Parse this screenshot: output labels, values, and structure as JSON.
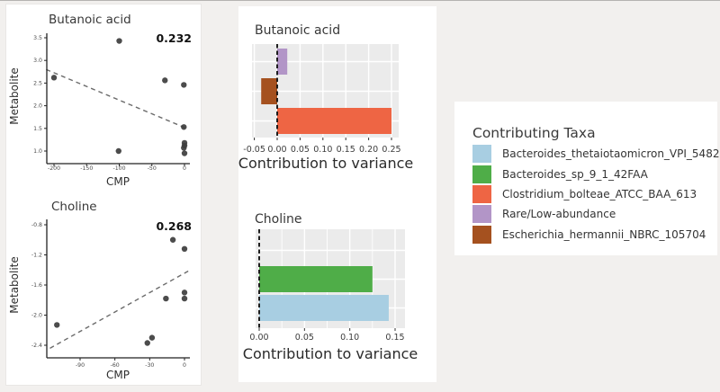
{
  "figure": {
    "background": "#f2f0ee",
    "panel_gray": "#ebebeb",
    "point_color": "#3d3d3d"
  },
  "legend": {
    "title": "Contributing Taxa",
    "items": [
      {
        "label": "Bacteroides_thetaiotaomicron_VPI_5482",
        "color": "#a8cee2"
      },
      {
        "label": "Bacteroides_sp_9_1_42FAA",
        "color": "#4fad48"
      },
      {
        "label": "Clostridium_bolteae_ATCC_BAA_613",
        "color": "#ee6544"
      },
      {
        "label": "Rare/Low-abundance",
        "color": "#b295c7"
      },
      {
        "label": "Escherichia_hermannii_NBRC_105704",
        "color": "#a5511f"
      }
    ]
  },
  "chart_data": [
    {
      "id": "scatter-butanoic",
      "type": "scatter",
      "title": "Butanoic acid",
      "xlabel": "CMP",
      "ylabel": "Metabolite",
      "annotation": "0.232",
      "xlim": [
        -212,
        5
      ],
      "ylim": [
        0.9,
        3.6
      ],
      "xticks": [
        "-200",
        "-150",
        "-100",
        "-50",
        "0"
      ],
      "yticks": [
        "3.5",
        "3.0",
        "2.5",
        "2.0",
        "1.5",
        "1.0"
      ],
      "points": [
        [
          -200,
          2.62
        ],
        [
          -100,
          3.43
        ],
        [
          -101,
          1.0
        ],
        [
          -30,
          2.56
        ],
        [
          -1,
          2.46
        ],
        [
          -1,
          1.53
        ],
        [
          0,
          1.18
        ],
        [
          0,
          1.12
        ],
        [
          -1,
          1.07
        ],
        [
          0,
          0.95
        ]
      ],
      "trendline": {
        "x1": -212,
        "y1": 2.8,
        "x2": 5,
        "y2": 1.49
      },
      "grid": false
    },
    {
      "id": "scatter-choline",
      "type": "scatter",
      "title": "Choline",
      "xlabel": "CMP",
      "ylabel": "Metabolite",
      "annotation": "0.268",
      "xlim": [
        -117,
        5
      ],
      "ylim": [
        -2.45,
        -0.75
      ],
      "xticks": [
        "-90",
        "-60",
        "-30",
        "0"
      ],
      "yticks": [
        "-0.8",
        "-1.2",
        "-1.6",
        "-2.0",
        "-2.4"
      ],
      "points": [
        [
          -110,
          -2.13
        ],
        [
          -32,
          -2.37
        ],
        [
          -28,
          -2.3
        ],
        [
          -16,
          -1.78
        ],
        [
          -10,
          -1.0
        ],
        [
          0,
          -1.12
        ],
        [
          0,
          -1.7
        ],
        [
          0,
          -1.78
        ]
      ],
      "trendline": {
        "x1": -116,
        "y1": -2.44,
        "x2": 5,
        "y2": -1.4
      },
      "grid": false
    },
    {
      "id": "bar-butanoic",
      "type": "bar",
      "orientation": "horizontal",
      "title": "Butanoic acid",
      "xlabel": "Contribution to variance",
      "xlim": [
        -0.055,
        0.265
      ],
      "xticks": [
        "-0.05",
        "0.00",
        "0.05",
        "0.10",
        "0.15",
        "0.20",
        "0.25"
      ],
      "bars": [
        {
          "taxon": "Rare/Low-abundance",
          "value": 0.022,
          "color": "#b295c7"
        },
        {
          "taxon": "Escherichia_hermannii_NBRC_105704",
          "value": -0.035,
          "color": "#a5511f"
        },
        {
          "taxon": "Clostridium_bolteae_ATCC_BAA_613",
          "value": 0.25,
          "color": "#ee6544"
        }
      ],
      "zero_line": true,
      "grid": true
    },
    {
      "id": "bar-choline",
      "type": "bar",
      "orientation": "horizontal",
      "title": "Choline",
      "xlabel": "Contribution to variance",
      "xlim": [
        -0.004,
        0.161
      ],
      "xticks": [
        "0.00",
        "0.05",
        "0.10",
        "0.15"
      ],
      "bars": [
        {
          "taxon": "Bacteroides_sp_9_1_42FAA",
          "value": 0.125,
          "color": "#4fad48"
        },
        {
          "taxon": "Bacteroides_thetaiotaomicron_VPI_5482",
          "value": 0.143,
          "color": "#a8cee2"
        }
      ],
      "zero_line": true,
      "grid": true
    }
  ]
}
